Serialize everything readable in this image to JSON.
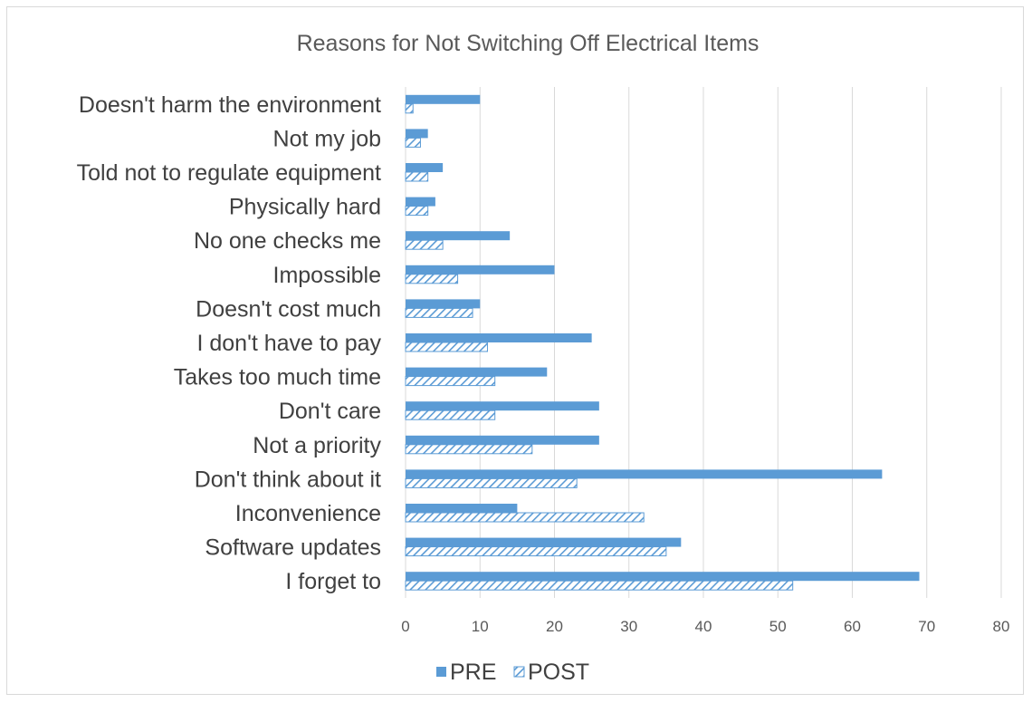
{
  "chart_data": {
    "type": "bar",
    "orientation": "horizontal",
    "title": "Reasons for Not Switching Off Electrical Items",
    "xlabel": "",
    "ylabel": "",
    "xlim": [
      0,
      80
    ],
    "x_ticks": [
      "0",
      "10",
      "20",
      "30",
      "40",
      "50",
      "60",
      "70",
      "80"
    ],
    "grid": true,
    "legend_position": "bottom",
    "categories": [
      "Doesn't harm the environment",
      "Not my job",
      "Told not to regulate equipment",
      "Physically hard",
      "No one checks me",
      "Impossible",
      "Doesn't cost much",
      "I don't have to pay",
      "Takes too much time",
      "Don't care",
      "Not a priority",
      "Don't think about it",
      "Inconvenience",
      "Software updates",
      "I forget to"
    ],
    "series": [
      {
        "name": "PRE",
        "color": "#5b9bd5",
        "fill": "solid",
        "values": [
          10,
          3,
          5,
          4,
          14,
          20,
          10,
          25,
          19,
          26,
          26,
          64,
          15,
          37,
          69
        ]
      },
      {
        "name": "POST",
        "color": "#5b9bd5",
        "fill": "hatched",
        "values": [
          1,
          2,
          3,
          3,
          5,
          7,
          9,
          11,
          12,
          12,
          17,
          23,
          32,
          35,
          52
        ]
      }
    ]
  }
}
